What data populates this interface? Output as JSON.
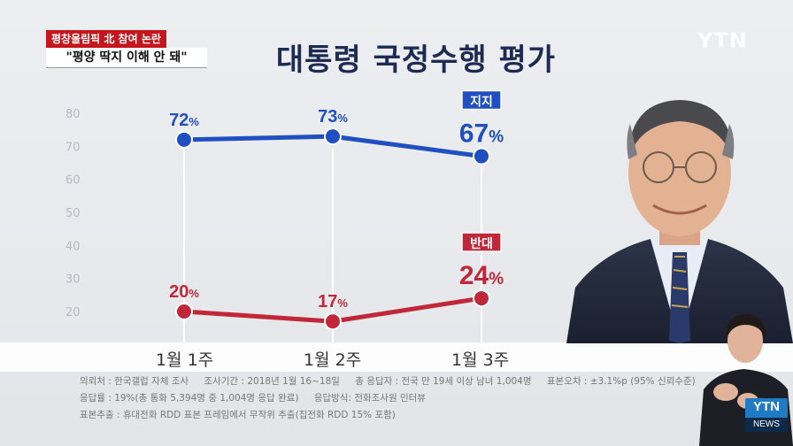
{
  "header": {
    "tag_red": "평창올림픽 北 참여 논란",
    "tag_white": "\"평양 딱지 이해 안 돼\"",
    "channel_logo": "YTN"
  },
  "chart_data": {
    "type": "line",
    "title": "대통령 국정수행 평가",
    "categories": [
      "1월 1주",
      "1월 2주",
      "1월 3주"
    ],
    "series": [
      {
        "name": "지지",
        "values": [
          72,
          73,
          67
        ],
        "labels": [
          "72%",
          "73%",
          "67%"
        ],
        "color": "#1f4fc0"
      },
      {
        "name": "반대",
        "values": [
          20,
          17,
          24
        ],
        "labels": [
          "20%",
          "17%",
          "24%"
        ],
        "color": "#c0283a"
      }
    ],
    "y_ticks": [
      20,
      30,
      40,
      50,
      60,
      70,
      80
    ],
    "ylim": [
      16,
      82
    ],
    "grid": false
  },
  "notes": {
    "row1": [
      "의뢰처 : 한국갤럽 자체 조사",
      "조사기간 : 2018년 1월 16~18일",
      "총 응답자 : 전국 만 19세 이상 남녀 1,004명",
      "표본오차 : ±3.1%p (95% 신뢰수준)"
    ],
    "row2": [
      "응답률 : 19%(총 통화 5,394명 중 1,004명 응답 완료)",
      "응답방식: 전화조사원 인터뷰",
      "표본추출 : 휴대전화 RDD 표본 프레임에서 무작위 추출(집전화 RDD 15% 포함)"
    ]
  },
  "badge": {
    "top": "YTN",
    "bottom": "NEWS"
  }
}
